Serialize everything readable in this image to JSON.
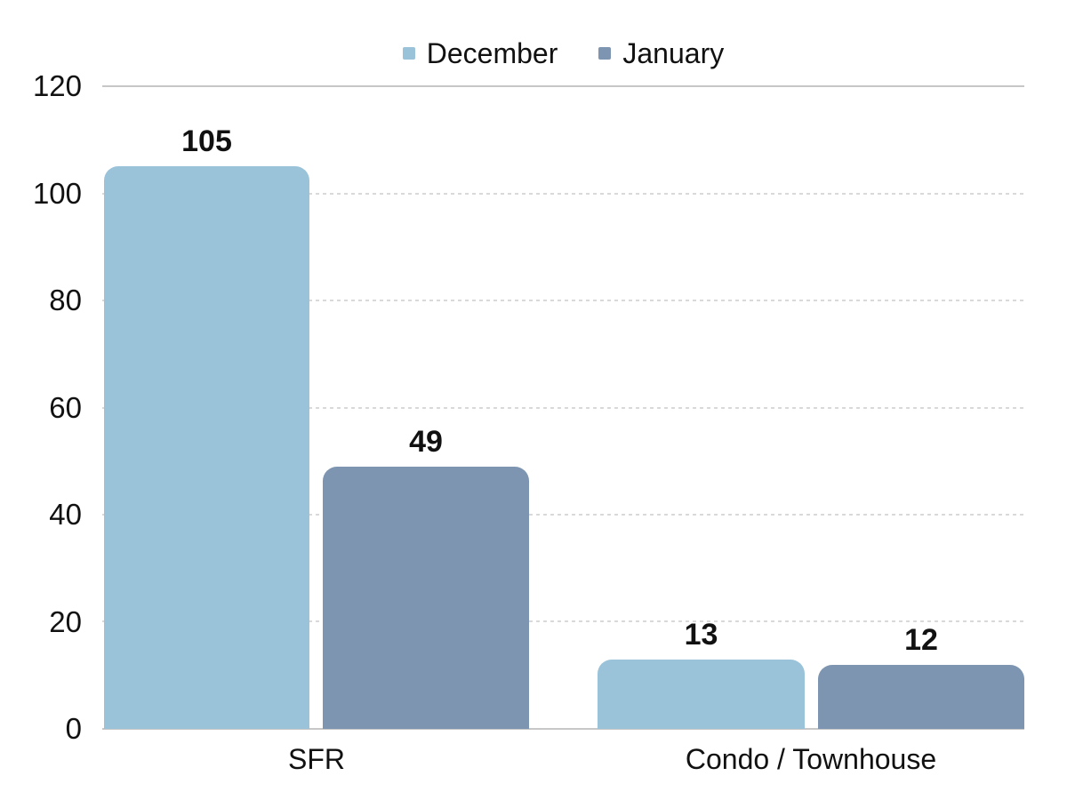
{
  "chart_data": {
    "type": "bar",
    "title": "",
    "categories": [
      "SFR",
      "Condo / Townhouse"
    ],
    "series": [
      {
        "name": "December",
        "color": "#9ac3da",
        "values": [
          105,
          13
        ]
      },
      {
        "name": "January",
        "color": "#7e95b1",
        "values": [
          49,
          12
        ]
      }
    ],
    "xlabel": "",
    "ylabel": "",
    "ylim": [
      0,
      120
    ],
    "yticks": [
      "120",
      "100",
      "80",
      "60",
      "40",
      "20",
      "0"
    ],
    "grid": "horizontal, inner lines dashed, top and bottom solid",
    "legend_position": "top-center",
    "colors": {
      "text": "#111111",
      "gridline_dashed": "#d9d9d9",
      "gridline_solid": "#c7c7c7",
      "background": "#ffffff"
    }
  }
}
